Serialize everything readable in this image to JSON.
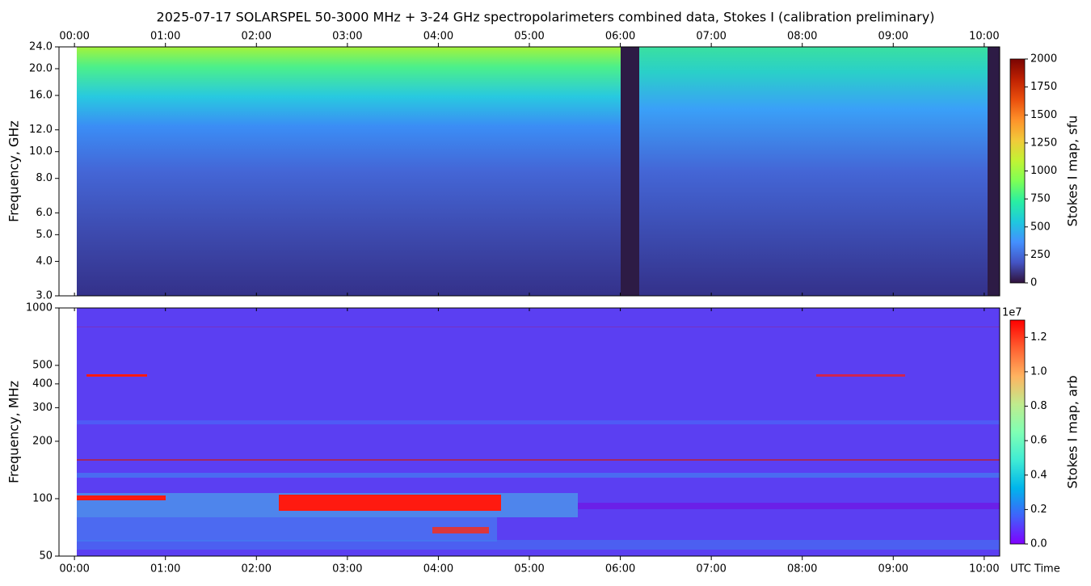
{
  "chart_data": [
    {
      "type": "heatmap",
      "title": "2025-07-17  SOLARSPEL  50-3000 MHz  +  3-24 GHz  spectropolarimeters combined data,  Stokes I  (calibration preliminary)",
      "xaxis_position": "top",
      "xlim": [
        -0.17,
        10.17
      ],
      "xticks": [
        {
          "value": 0,
          "label": "00:00"
        },
        {
          "value": 1,
          "label": "01:00"
        },
        {
          "value": 2,
          "label": "02:00"
        },
        {
          "value": 3,
          "label": "03:00"
        },
        {
          "value": 4,
          "label": "04:00"
        },
        {
          "value": 5,
          "label": "05:00"
        },
        {
          "value": 6,
          "label": "06:00"
        },
        {
          "value": 7,
          "label": "07:00"
        },
        {
          "value": 8,
          "label": "08:00"
        },
        {
          "value": 9,
          "label": "09:00"
        },
        {
          "value": 10,
          "label": "10:00"
        }
      ],
      "ylabel": "Frequency, GHz",
      "y_scale": "log",
      "ylim": [
        3,
        24
      ],
      "yticks": [
        {
          "value": 3,
          "label": "3.0"
        },
        {
          "value": 4,
          "label": "4.0"
        },
        {
          "value": 5,
          "label": "5.0"
        },
        {
          "value": 6,
          "label": "6.0"
        },
        {
          "value": 8,
          "label": "8.0"
        },
        {
          "value": 10,
          "label": "10.0"
        },
        {
          "value": 12,
          "label": "12.0"
        },
        {
          "value": 16,
          "label": "16.0"
        },
        {
          "value": 20,
          "label": "20.0"
        },
        {
          "value": 24,
          "label": "24.0"
        }
      ],
      "colorbar": {
        "label": "Stokes I map, sfu",
        "colormap": "turbo",
        "lim": [
          0,
          2000
        ],
        "ticks": [
          0,
          250,
          500,
          750,
          1000,
          1250,
          1500,
          1750,
          2000
        ]
      }
    },
    {
      "type": "heatmap",
      "xaxis_position": "bottom",
      "xlabel": "UTC Time",
      "xlim": [
        -0.17,
        10.17
      ],
      "xticks": [
        {
          "value": 0,
          "label": "00:00"
        },
        {
          "value": 1,
          "label": "01:00"
        },
        {
          "value": 2,
          "label": "02:00"
        },
        {
          "value": 3,
          "label": "03:00"
        },
        {
          "value": 4,
          "label": "04:00"
        },
        {
          "value": 5,
          "label": "05:00"
        },
        {
          "value": 6,
          "label": "06:00"
        },
        {
          "value": 7,
          "label": "07:00"
        },
        {
          "value": 8,
          "label": "08:00"
        },
        {
          "value": 9,
          "label": "09:00"
        },
        {
          "value": 10,
          "label": "10:00"
        }
      ],
      "ylabel": "Frequency, MHz",
      "y_scale": "log",
      "ylim": [
        50,
        1000
      ],
      "yticks": [
        50,
        100,
        200,
        300,
        400,
        500,
        1000
      ],
      "colorbar": {
        "label": "Stokes I map, arb",
        "colormap": "rainbow",
        "lim": [
          0,
          1.3
        ],
        "offset_label": "1e7",
        "ticks": [
          {
            "value": 0,
            "label": "0.0"
          },
          {
            "value": 0.2,
            "label": "0.2"
          },
          {
            "value": 0.4,
            "label": "0.4"
          },
          {
            "value": 0.6,
            "label": "0.6"
          },
          {
            "value": 0.8,
            "label": "0.8"
          },
          {
            "value": 1.0,
            "label": "1.0"
          },
          {
            "value": 1.2,
            "label": "1.2"
          }
        ]
      }
    }
  ]
}
